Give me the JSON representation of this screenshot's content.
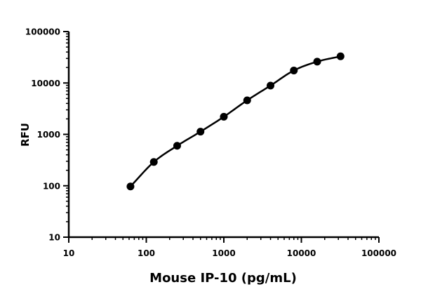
{
  "chart_data": {
    "type": "scatter",
    "title": "",
    "xlabel": "Mouse  IP-10 (pg/mL)",
    "ylabel": "RFU",
    "xscale": "log",
    "yscale": "log",
    "xlim": [
      10,
      100000
    ],
    "ylim": [
      10,
      100000
    ],
    "x_ticks": [
      "10",
      "100",
      "1000",
      "10000",
      "100000"
    ],
    "y_ticks": [
      "10",
      "100",
      "1000",
      "10000",
      "100000"
    ],
    "grid": false,
    "legend": "none",
    "series": [
      {
        "x": [
          62.5,
          125,
          250,
          500,
          1000,
          2000,
          4000,
          8000,
          16000,
          32000
        ],
        "y": [
          97,
          290,
          600,
          1130,
          2200,
          4600,
          8900,
          17500,
          26000,
          33000
        ],
        "fit_curve": true
      }
    ],
    "colors": {
      "marker": "#000000",
      "line": "#000000",
      "axis": "#000000"
    }
  }
}
